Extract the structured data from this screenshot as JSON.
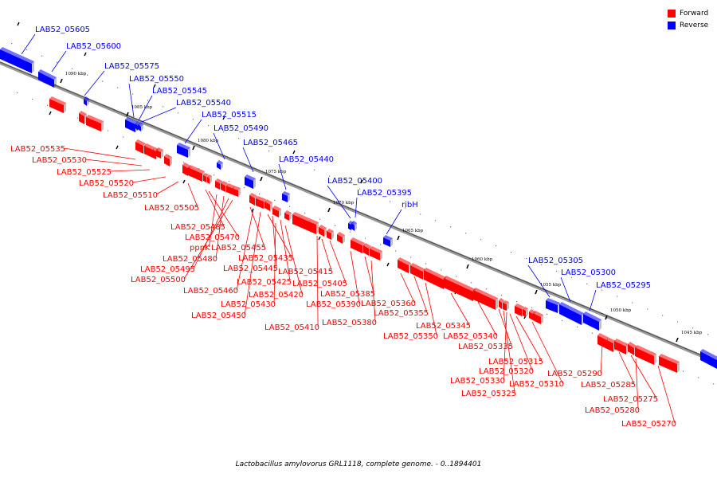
{
  "legend": {
    "forward_label": "Forward",
    "reverse_label": "Reverse",
    "forward_color": "#ff0000",
    "reverse_color": "#0000ff"
  },
  "caption": "Lactobacillus amylovorus GRL1118, complete genome. - 0..1894401",
  "ticks": [
    "1090 kbp",
    "1085 kbp",
    "1080 kbp",
    "1075 kbp",
    "1070 kbp",
    "1065 kbp",
    "1060 kbp",
    "1055 kbp",
    "1050 kbp",
    "1045 kbp"
  ],
  "reverse_genes": [
    "LAB52_05605",
    "LAB52_05600",
    "LAB52_05575",
    "LAB52_05550",
    "LAB52_05545",
    "LAB52_05540",
    "LAB52_05515",
    "LAB52_05490",
    "LAB52_05465",
    "LAB52_05440",
    "LAB52_05400",
    "LAB52_05395",
    "ribH",
    "LAB52_05305",
    "LAB52_05300",
    "LAB52_05295"
  ],
  "forward_genes": [
    "LAB52_05535",
    "LAB52_05530",
    "LAB52_05525",
    "LAB52_05520",
    "LAB52_05510",
    "LAB52_05505",
    "LAB52_05485",
    "LAB52_05470",
    "ppnK",
    "LAB52_05480",
    "LAB52_05495",
    "LAB52_05500",
    "LAB52_05455",
    "LAB52_05435",
    "LAB52_05445",
    "LAB52_05425",
    "LAB52_05460",
    "LAB52_05430",
    "LAB52_05450",
    "LAB52_05420",
    "LAB52_05415",
    "LAB52_05405",
    "LAB52_05390",
    "LAB52_05410",
    "LAB52_05385",
    "LAB52_05380",
    "LAB52_05360",
    "LAB52_05355",
    "LAB52_05350",
    "LAB52_05345",
    "LAB52_05340",
    "LAB52_05335",
    "LAB52_05315",
    "LAB52_05320",
    "LAB52_05330",
    "LAB52_05325",
    "LAB52_05310",
    "LAB52_05290",
    "LAB52_05285",
    "LAB52_05275",
    "LAB52_05280",
    "LAB52_05270"
  ]
}
